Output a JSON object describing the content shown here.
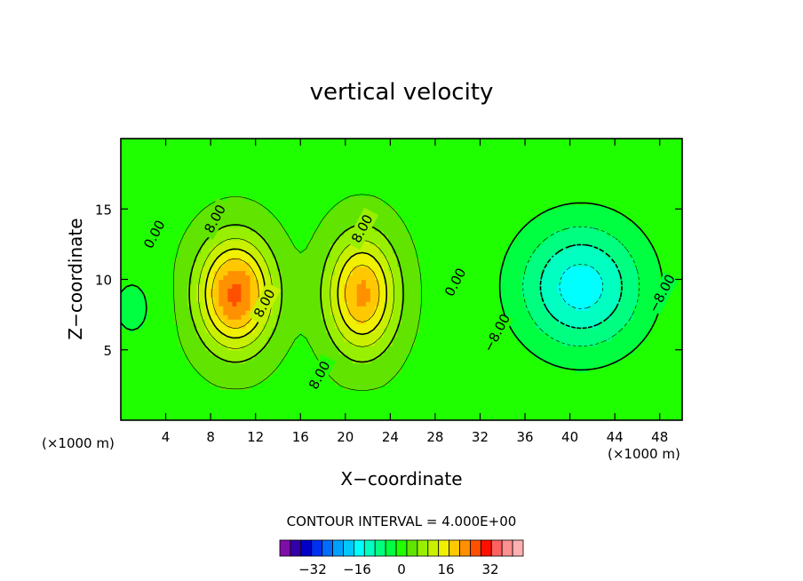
{
  "chart_data": {
    "type": "heatmap",
    "title": "vertical velocity",
    "xlabel": "X−coordinate",
    "ylabel": "Z−coordinate",
    "x_unit_label": "(×1000 m)",
    "y_unit_label": "(×1000 m)",
    "xlim": [
      0,
      50
    ],
    "ylim": [
      0,
      20
    ],
    "x_ticks": [
      4,
      8,
      12,
      16,
      20,
      24,
      28,
      32,
      36,
      40,
      44,
      48
    ],
    "y_ticks": [
      5,
      10,
      15
    ],
    "contour_interval_text": "CONTOUR INTERVAL = 4.000E+00",
    "contour_labels": [
      {
        "text": "0.00",
        "x": 3.0,
        "z": 13.2
      },
      {
        "text": "8.00",
        "x": 8.4,
        "z": 14.3
      },
      {
        "text": "8.00",
        "x": 12.8,
        "z": 8.3
      },
      {
        "text": "8.00",
        "x": 21.5,
        "z": 13.6
      },
      {
        "text": "8.00",
        "x": 17.7,
        "z": 3.2
      },
      {
        "text": "0.00",
        "x": 29.8,
        "z": 9.8
      },
      {
        "text": "−8.00",
        "x": 33.5,
        "z": 6.2
      },
      {
        "text": "−8.00",
        "x": 48.2,
        "z": 9.0
      }
    ],
    "colorbar": {
      "levels": [
        -40,
        -36,
        -32,
        -28,
        -24,
        -20,
        -16,
        -12,
        -8,
        -4,
        0,
        4,
        8,
        12,
        16,
        20,
        24,
        28,
        32,
        36,
        40
      ],
      "colors": [
        "#7e0ea6",
        "#3200a8",
        "#0000c8",
        "#0030f0",
        "#006cff",
        "#00a0ff",
        "#00c8ff",
        "#00ffff",
        "#00ffc0",
        "#00ff80",
        "#00ff40",
        "#20ff00",
        "#60e400",
        "#98f000",
        "#c8f000",
        "#f0f000",
        "#ffc800",
        "#ff9000",
        "#ff5000",
        "#ff1000",
        "#ff6060",
        "#ff9090",
        "#ffb0b0"
      ],
      "tick_labels": [
        "−32",
        "−16",
        "0",
        "16",
        "32"
      ],
      "tick_values": [
        -32,
        -16,
        0,
        16,
        32
      ]
    },
    "features": [
      {
        "name": "updraft-left",
        "x": 10.2,
        "z": 9.0,
        "amp": 26,
        "sx": 3.2,
        "sz": 3.8
      },
      {
        "name": "updraft-right",
        "x": 21.5,
        "z": 9.0,
        "amp": 22,
        "sx": 3.0,
        "sz": 4.0
      },
      {
        "name": "downdraft-right",
        "x": 41.0,
        "z": 9.5,
        "amp": -17,
        "sx": 5.5,
        "sz": 4.5
      }
    ]
  }
}
